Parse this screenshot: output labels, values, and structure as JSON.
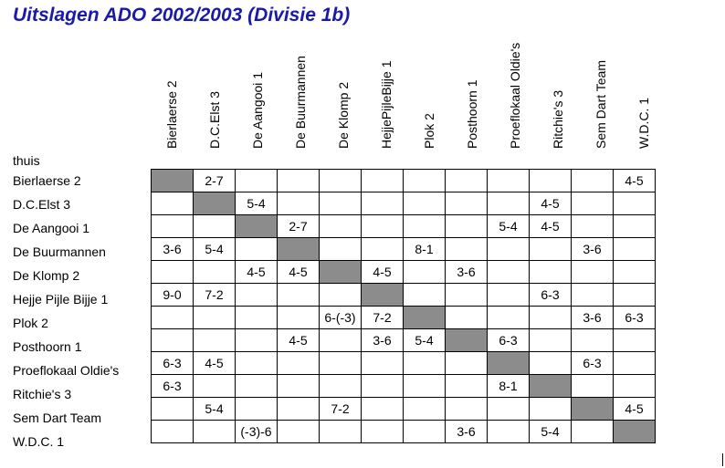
{
  "title": "Uitslagen ADO 2002/2003  (Divisie 1b)",
  "home_label": "thuis",
  "teams": [
    "Bierlaerse 2",
    "D.C.Elst 3",
    "De Aangooi 1",
    "De Buurmannen",
    "De Klomp 2",
    "Hejje Pijle Bijje 1",
    "Plok 2",
    "Posthoorn 1",
    "Proeflokaal Oldie's",
    "Ritchie's 3",
    "Sem Dart Team",
    "W.D.C. 1"
  ],
  "column_headers": [
    "Bierlaerse 2",
    "D.C.Elst 3",
    "De Aangooi 1",
    "De Buurmannen",
    "De Klomp 2",
    "HejjePijleBijje 1",
    "Plok 2",
    "Posthoorn 1",
    "Proeflokaal Oldie's",
    "Ritchie's 3",
    "Sem Dart Team",
    "W.D.C. 1"
  ],
  "results": [
    [
      "",
      "2-7",
      "",
      "",
      "",
      "",
      "",
      "",
      "",
      "",
      "",
      "4-5"
    ],
    [
      "",
      "",
      "5-4",
      "",
      "",
      "",
      "",
      "",
      "",
      "4-5",
      "",
      ""
    ],
    [
      "",
      "",
      "",
      "2-7",
      "",
      "",
      "",
      "",
      "5-4",
      "4-5",
      "",
      ""
    ],
    [
      "3-6",
      "5-4",
      "",
      "",
      "",
      "",
      "8-1",
      "",
      "",
      "",
      "3-6",
      ""
    ],
    [
      "",
      "",
      "4-5",
      "4-5",
      "",
      "4-5",
      "",
      "3-6",
      "",
      "",
      "",
      ""
    ],
    [
      "9-0",
      "7-2",
      "",
      "",
      "",
      "",
      "",
      "",
      "",
      "6-3",
      "",
      ""
    ],
    [
      "",
      "",
      "",
      "",
      "6-(-3)",
      "7-2",
      "",
      "",
      "",
      "",
      "3-6",
      "6-3"
    ],
    [
      "",
      "",
      "",
      "4-5",
      "",
      "3-6",
      "5-4",
      "",
      "6-3",
      "",
      "",
      ""
    ],
    [
      "6-3",
      "4-5",
      "",
      "",
      "",
      "",
      "",
      "",
      "",
      "",
      "6-3",
      ""
    ],
    [
      "6-3",
      "",
      "",
      "",
      "",
      "",
      "",
      "",
      "8-1",
      "",
      "",
      ""
    ],
    [
      "",
      "5-4",
      "",
      "",
      "7-2",
      "",
      "",
      "",
      "",
      "",
      "",
      "4-5"
    ],
    [
      "",
      "",
      "(-3)-6",
      "",
      "",
      "",
      "",
      "3-6",
      "",
      "5-4",
      "",
      ""
    ]
  ],
  "colors": {
    "title": "#1a1aa8",
    "diagonal": "#8c8c8c"
  }
}
